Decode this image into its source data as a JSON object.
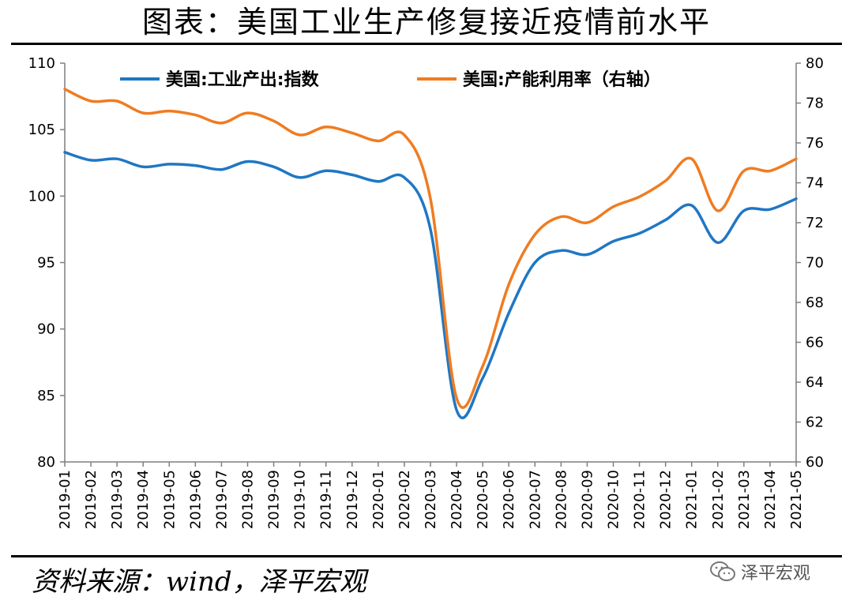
{
  "title": "图表：美国工业生产修复接近疫情前水平",
  "source": "资料来源：wind，泽平宏观",
  "watermark": "泽平宏观",
  "chart_data": {
    "type": "line",
    "categories": [
      "2019-01",
      "2019-02",
      "2019-03",
      "2019-04",
      "2019-05",
      "2019-06",
      "2019-07",
      "2019-08",
      "2019-09",
      "2019-10",
      "2019-11",
      "2019-12",
      "2020-01",
      "2020-02",
      "2020-03",
      "2020-04",
      "2020-05",
      "2020-06",
      "2020-07",
      "2020-08",
      "2020-09",
      "2020-10",
      "2020-11",
      "2020-12",
      "2021-01",
      "2021-02",
      "2021-03",
      "2021-04",
      "2021-05"
    ],
    "series": [
      {
        "name": "美国:工业产出:指数",
        "axis": "left",
        "color": "#1f77c4",
        "values": [
          103.3,
          102.7,
          102.8,
          102.2,
          102.4,
          102.3,
          102.0,
          102.6,
          102.2,
          101.4,
          101.9,
          101.6,
          101.1,
          101.4,
          97.5,
          83.9,
          86.3,
          91.2,
          95.0,
          95.9,
          95.6,
          96.6,
          97.2,
          98.2,
          99.3,
          96.5,
          98.9,
          99.0,
          99.8
        ]
      },
      {
        "name": "美国:产能利用率（右轴）",
        "axis": "right",
        "color": "#ef7c22",
        "values": [
          78.7,
          78.1,
          78.1,
          77.5,
          77.6,
          77.4,
          77.0,
          77.5,
          77.1,
          76.4,
          76.8,
          76.5,
          76.1,
          76.4,
          73.2,
          63.2,
          64.8,
          68.9,
          71.4,
          72.3,
          72.0,
          72.8,
          73.3,
          74.1,
          75.2,
          72.6,
          74.6,
          74.6,
          75.2
        ]
      }
    ],
    "yleft": {
      "min": 80,
      "max": 110,
      "ticks": [
        80,
        85,
        90,
        95,
        100,
        105,
        110
      ]
    },
    "yright": {
      "min": 60,
      "max": 80,
      "ticks": [
        60,
        62,
        64,
        66,
        68,
        70,
        72,
        74,
        76,
        78,
        80
      ]
    },
    "legend_position": "top-center",
    "grid": false
  }
}
